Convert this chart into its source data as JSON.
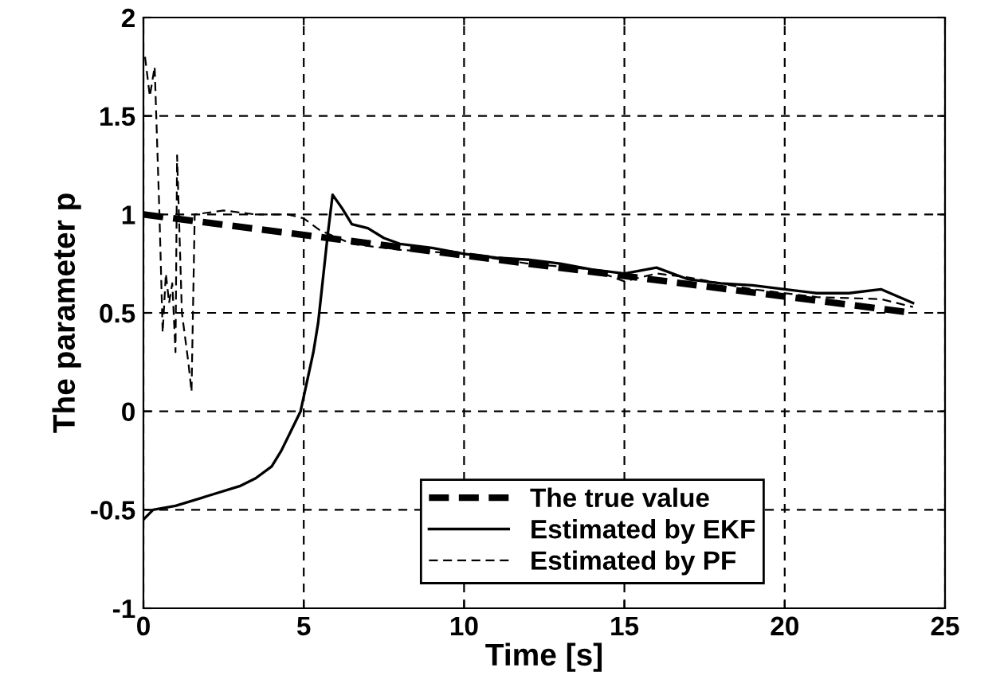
{
  "chart_data": {
    "type": "line",
    "xlabel": "Time [s]",
    "ylabel": "The parameter p",
    "xlim": [
      0,
      25
    ],
    "ylim": [
      -1,
      2
    ],
    "xticks": [
      0,
      5,
      10,
      15,
      20,
      25
    ],
    "yticks": [
      -1,
      -0.5,
      0,
      0.5,
      1,
      1.5,
      2
    ],
    "grid": true,
    "legend": "bottom",
    "series": [
      {
        "name": "The true value",
        "color": "#000000",
        "line_style": "dashed",
        "x": [
          0,
          24
        ],
        "values": [
          1.0,
          0.5
        ]
      },
      {
        "name": "Estimated by EKF",
        "color": "#000000",
        "line_style": "solid",
        "x": [
          0,
          0.3,
          1,
          2,
          3,
          3.5,
          4,
          4.3,
          4.6,
          4.9,
          5.1,
          5.3,
          5.45,
          5.55,
          5.65,
          5.75,
          5.9,
          6.2,
          6.5,
          7,
          7.5,
          8,
          9,
          10,
          11,
          12,
          13,
          14,
          15,
          16,
          17,
          18,
          19,
          20,
          21,
          22,
          23,
          24
        ],
        "values": [
          -0.55,
          -0.5,
          -0.48,
          -0.43,
          -0.38,
          -0.34,
          -0.28,
          -0.2,
          -0.1,
          0.0,
          0.15,
          0.3,
          0.45,
          0.6,
          0.75,
          0.9,
          1.1,
          1.03,
          0.95,
          0.93,
          0.88,
          0.85,
          0.83,
          0.8,
          0.78,
          0.77,
          0.75,
          0.72,
          0.7,
          0.73,
          0.67,
          0.65,
          0.64,
          0.62,
          0.6,
          0.6,
          0.62,
          0.55
        ]
      },
      {
        "name": "Estimated by PF",
        "color": "#000000",
        "line_style": "dashed",
        "x": [
          0.05,
          0.2,
          0.35,
          0.5,
          0.6,
          0.7,
          0.8,
          0.9,
          1.0,
          1.05,
          1.2,
          1.4,
          1.5,
          1.6,
          2.5,
          3.5,
          4.5,
          5,
          5.5,
          6.5,
          8,
          10,
          12,
          14,
          15,
          16,
          17,
          19,
          21,
          23,
          24
        ],
        "values": [
          1.8,
          1.6,
          1.75,
          1.0,
          0.4,
          0.7,
          0.55,
          0.65,
          0.3,
          1.3,
          0.5,
          0.25,
          0.1,
          1.0,
          1.02,
          1.0,
          1.0,
          0.98,
          0.92,
          0.85,
          0.82,
          0.8,
          0.75,
          0.72,
          0.66,
          0.7,
          0.68,
          0.62,
          0.58,
          0.57,
          0.53
        ]
      }
    ]
  }
}
